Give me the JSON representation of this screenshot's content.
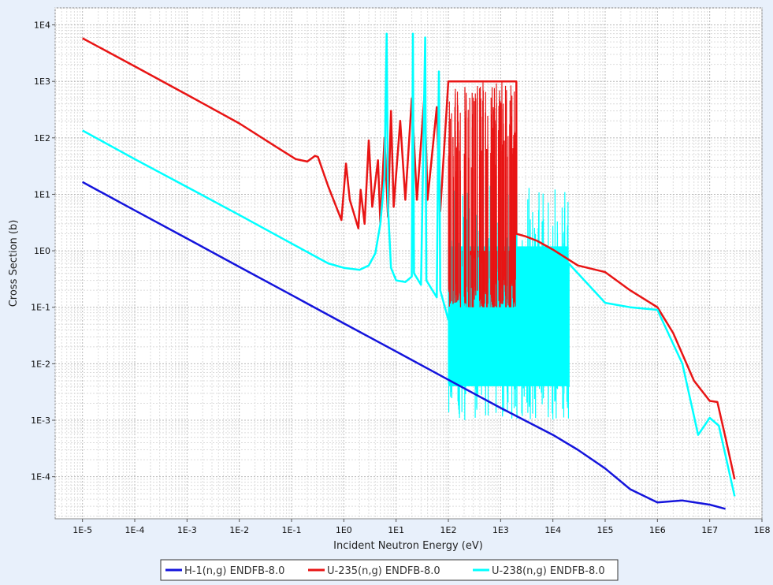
{
  "chart_data": {
    "type": "line",
    "xlabel": "Incident Neutron Energy (eV)",
    "ylabel": "Cross Section (b)",
    "x_scale": "log",
    "y_scale": "log",
    "xlim": [
      3e-06,
      100000000.0
    ],
    "ylim": [
      1.8e-05,
      20000.0
    ],
    "grid": true,
    "legend_position": "bottom-center",
    "x_ticks": [
      "1E-5",
      "1E-4",
      "1E-3",
      "1E-2",
      "1E-1",
      "1E0",
      "1E1",
      "1E2",
      "1E3",
      "1E4",
      "1E5",
      "1E6",
      "1E7",
      "1E8"
    ],
    "y_ticks": [
      "1E-4",
      "1E-3",
      "1E-2",
      "1E-1",
      "1E0",
      "1E1",
      "1E2",
      "1E3",
      "1E4"
    ],
    "series": [
      {
        "name": "H-1(n,g) ENDFB-8.0",
        "color": "#1414dc",
        "points": [
          [
            1e-05,
            16.5
          ],
          [
            0.0001,
            5.2
          ],
          [
            0.001,
            1.65
          ],
          [
            0.01,
            0.52
          ],
          [
            0.1,
            0.165
          ],
          [
            1,
            0.052
          ],
          [
            10,
            0.0165
          ],
          [
            100,
            0.0052
          ],
          [
            1000,
            0.00165
          ],
          [
            10000.0,
            0.00055
          ],
          [
            30000.0,
            0.0003
          ],
          [
            100000.0,
            0.00014
          ],
          [
            300000.0,
            6e-05
          ],
          [
            1000000.0,
            3.5e-05
          ],
          [
            3000000.0,
            3.8e-05
          ],
          [
            10000000.0,
            3.2e-05
          ],
          [
            20000000.0,
            2.7e-05
          ]
        ]
      },
      {
        "name": "U-235(n,g) ENDFB-8.0",
        "color": "#e81414",
        "points": [
          [
            1e-05,
            5800
          ],
          [
            0.0001,
            1850
          ],
          [
            0.001,
            580
          ],
          [
            0.01,
            180
          ],
          [
            0.05,
            70
          ],
          [
            0.12,
            42
          ],
          [
            0.2,
            38
          ],
          [
            0.28,
            48
          ],
          [
            0.32,
            46
          ],
          [
            0.5,
            14
          ],
          [
            0.9,
            3.5
          ],
          [
            1.1,
            35
          ],
          [
            1.3,
            8
          ],
          [
            1.9,
            2.5
          ],
          [
            2.1,
            12
          ],
          [
            2.5,
            3
          ],
          [
            3,
            90
          ],
          [
            3.5,
            6
          ],
          [
            4.5,
            40
          ],
          [
            5,
            3
          ],
          [
            6,
            100
          ],
          [
            7,
            4
          ],
          [
            8,
            300
          ],
          [
            9,
            6
          ],
          [
            12,
            200
          ],
          [
            15,
            8
          ],
          [
            20,
            500
          ],
          [
            25,
            8
          ],
          [
            35,
            600
          ],
          [
            40,
            8
          ],
          [
            60,
            350
          ],
          [
            70,
            5
          ],
          [
            100,
            1000
          ],
          [
            2000,
            1000
          ],
          [
            2000,
            2
          ],
          [
            3000,
            1.8
          ],
          [
            5000,
            1.5
          ],
          [
            10000.0,
            1.05
          ],
          [
            30000.0,
            0.55
          ],
          [
            100000.0,
            0.42
          ],
          [
            300000.0,
            0.2
          ],
          [
            1000000.0,
            0.1
          ],
          [
            2000000.0,
            0.035
          ],
          [
            5000000.0,
            0.005
          ],
          [
            10000000.0,
            0.0022
          ],
          [
            14000000.0,
            0.0021
          ],
          [
            20000000.0,
            0.0005
          ],
          [
            30000000.0,
            9e-05
          ]
        ]
      },
      {
        "name": "U-238(n,g) ENDFB-8.0",
        "color": "#00ffff",
        "points": [
          [
            1e-05,
            135
          ],
          [
            0.0001,
            42
          ],
          [
            0.001,
            13.5
          ],
          [
            0.01,
            4.3
          ],
          [
            0.1,
            1.35
          ],
          [
            0.5,
            0.6
          ],
          [
            1,
            0.5
          ],
          [
            2,
            0.46
          ],
          [
            3,
            0.55
          ],
          [
            4,
            0.9
          ],
          [
            5,
            3
          ],
          [
            6,
            20
          ],
          [
            6.6,
            7000
          ],
          [
            7,
            6
          ],
          [
            8,
            0.5
          ],
          [
            10,
            0.3
          ],
          [
            15,
            0.28
          ],
          [
            20,
            0.35
          ],
          [
            21,
            7000
          ],
          [
            22,
            0.4
          ],
          [
            30,
            0.25
          ],
          [
            36,
            6000
          ],
          [
            38,
            0.3
          ],
          [
            60,
            0.15
          ],
          [
            66,
            1500
          ],
          [
            70,
            0.2
          ],
          [
            100,
            0.06
          ],
          [
            20000.0,
            0.004
          ],
          [
            20000.0,
            0.6
          ],
          [
            100000.0,
            0.12
          ],
          [
            300000.0,
            0.1
          ],
          [
            1000000.0,
            0.09
          ],
          [
            3000000.0,
            0.01
          ],
          [
            6000000.0,
            0.00055
          ],
          [
            10000000.0,
            0.0011
          ],
          [
            15000000.0,
            0.0008
          ],
          [
            30000000.0,
            4.5e-05
          ]
        ]
      }
    ]
  }
}
